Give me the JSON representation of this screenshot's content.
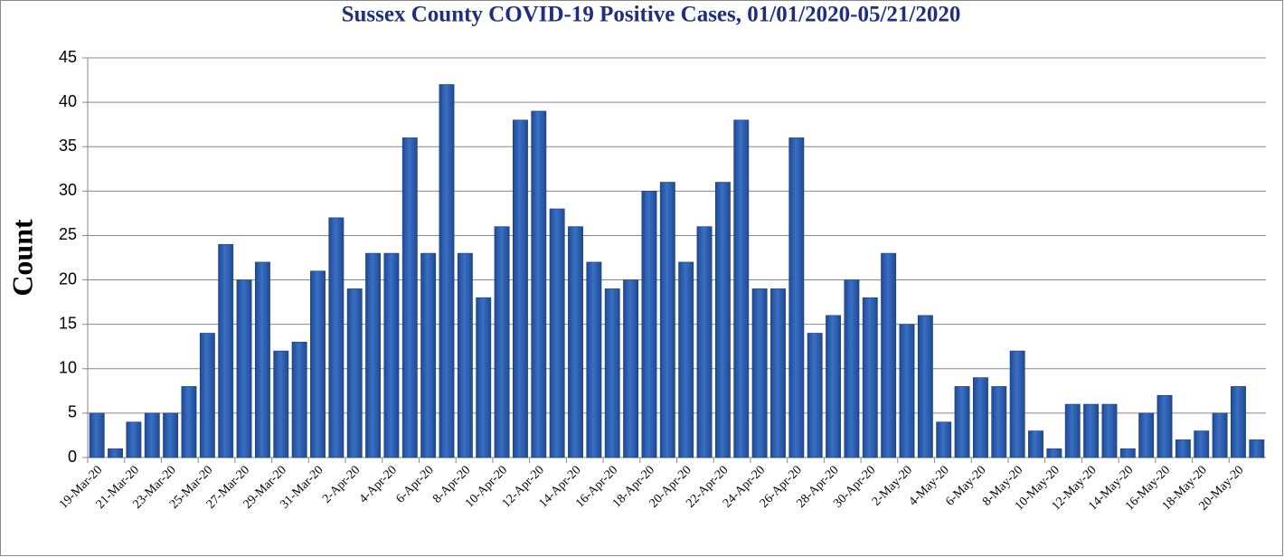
{
  "chart_data": {
    "type": "bar",
    "title": "Sussex County COVID-19 Positive Cases, 01/01/2020-05/21/2020",
    "y_label": "Count",
    "categories": [
      "19-Mar-20",
      null,
      "21-Mar-20",
      null,
      "23-Mar-20",
      null,
      "25-Mar-20",
      null,
      "27-Mar-20",
      null,
      "29-Mar-20",
      null,
      "31-Mar-20",
      null,
      "2-Apr-20",
      null,
      "4-Apr-20",
      null,
      "6-Apr-20",
      null,
      "8-Apr-20",
      null,
      "10-Apr-20",
      null,
      "12-Apr-20",
      null,
      "14-Apr-20",
      null,
      "16-Apr-20",
      null,
      "18-Apr-20",
      null,
      "20-Apr-20",
      null,
      "22-Apr-20",
      null,
      "24-Apr-20",
      null,
      "26-Apr-20",
      null,
      "28-Apr-20",
      null,
      "30-Apr-20",
      null,
      "2-May-20",
      null,
      "4-May-20",
      null,
      "6-May-20",
      null,
      "8-May-20",
      null,
      "10-May-20",
      null,
      "12-May-20",
      null,
      "14-May-20",
      null,
      "16-May-20",
      null,
      "18-May-20",
      null,
      "20-May-20",
      null
    ],
    "values": [
      5,
      1,
      4,
      5,
      5,
      8,
      14,
      24,
      20,
      22,
      12,
      13,
      21,
      27,
      19,
      23,
      23,
      36,
      23,
      42,
      23,
      18,
      26,
      38,
      39,
      28,
      26,
      22,
      19,
      20,
      30,
      31,
      22,
      26,
      31,
      38,
      19,
      19,
      36,
      14,
      16,
      20,
      18,
      23,
      15,
      16,
      4,
      8,
      9,
      8,
      12,
      3,
      1,
      6,
      6,
      6,
      1,
      5,
      7,
      2,
      3,
      5,
      8,
      2
    ],
    "color": "#3a6fc4",
    "ylim": [
      0,
      45
    ],
    "yticks": [
      0,
      5,
      10,
      15,
      20,
      25,
      30,
      35,
      40,
      45
    ],
    "grid": true
  }
}
